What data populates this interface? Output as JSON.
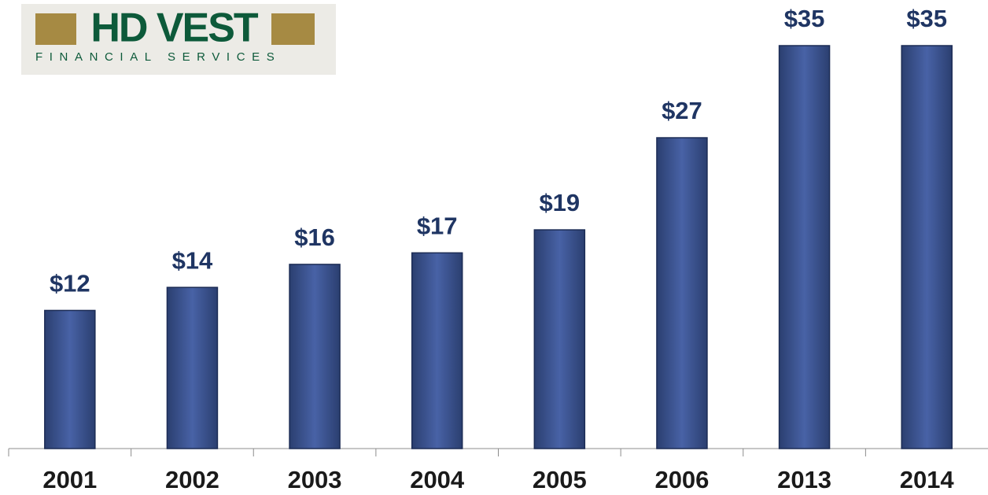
{
  "logo": {
    "title": "HD VEST",
    "subtitle": "FINANCIAL SERVICES"
  },
  "chart_data": {
    "type": "bar",
    "categories": [
      "2001",
      "2002",
      "2003",
      "2004",
      "2005",
      "2006",
      "2013",
      "2014"
    ],
    "values": [
      12,
      14,
      16,
      17,
      19,
      27,
      35,
      35
    ],
    "value_labels": [
      "$12",
      "$14",
      "$16",
      "$17",
      "$19",
      "$27",
      "$35",
      "$35"
    ],
    "color": "#3f5799"
  }
}
